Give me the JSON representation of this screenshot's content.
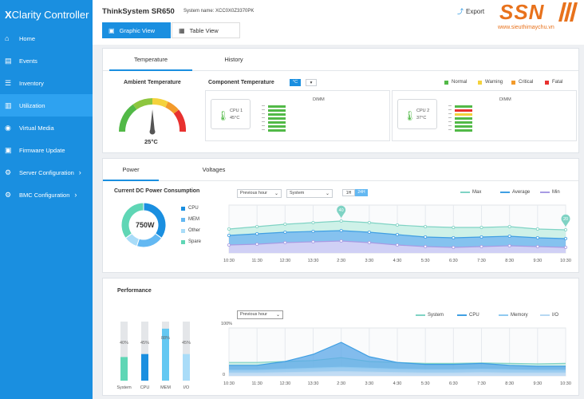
{
  "app": {
    "title_prefix": "X",
    "title_rest": "Clarity Controller"
  },
  "sidebar": {
    "items": [
      {
        "label": "Home",
        "icon": "home-icon"
      },
      {
        "label": "Events",
        "icon": "events-icon"
      },
      {
        "label": "Inventory",
        "icon": "inventory-icon"
      },
      {
        "label": "Utilization",
        "icon": "utilization-icon"
      },
      {
        "label": "Virtual Media",
        "icon": "virtual-media-icon"
      },
      {
        "label": "Firmware Update",
        "icon": "firmware-icon"
      },
      {
        "label": "Server Configuration",
        "icon": "server-config-icon"
      },
      {
        "label": "BMC Configuration",
        "icon": "bmc-config-icon"
      }
    ]
  },
  "header": {
    "system_title": "ThinkSystem SR650",
    "system_name": "System name: XCC0X0Z3370PK",
    "export_label": "Export",
    "graphic_view": "Graphic View",
    "table_view": "Table View"
  },
  "logo": {
    "mark": "SSN",
    "site": "www.sieuthimaychu.vn"
  },
  "temperature_panel": {
    "tabs": [
      "Temperature",
      "History"
    ],
    "ambient_label": "Ambient Temperature",
    "ambient_value": "25°C",
    "ambient_level": 0.45,
    "component_label": "Component Temperature",
    "unit_selected": "°C",
    "legend": [
      {
        "label": "Normal",
        "color": "#52b947"
      },
      {
        "label": "Warning",
        "color": "#f4d23c"
      },
      {
        "label": "Critical",
        "color": "#f39a2b"
      },
      {
        "label": "Fatal",
        "color": "#e8312f"
      }
    ],
    "cpus": [
      {
        "name": "CPU 1",
        "temp": "45°C",
        "dimm_label": "DIMM"
      },
      {
        "name": "CPU 2",
        "temp": "37°C",
        "dimm_label": "DIMM"
      }
    ]
  },
  "power_panel": {
    "tabs": [
      "Power",
      "Voltages"
    ],
    "title": "Current DC Power Consumption",
    "total": "750W",
    "donut": [
      {
        "label": "CPU",
        "value": 35,
        "color": "#1a8fe0"
      },
      {
        "label": "MEM",
        "value": 20,
        "color": "#63b8f2"
      },
      {
        "label": "Other",
        "value": 10,
        "color": "#a9dcf8"
      },
      {
        "label": "Spare",
        "value": 35,
        "color": "#5fd6b5"
      }
    ],
    "select_range": "Previous hour",
    "select_type": "System",
    "toggle_a": "1H",
    "toggle_b": "24H",
    "series": [
      {
        "label": "Max",
        "color": "#7fd3c4"
      },
      {
        "label": "Average",
        "color": "#3f9fe3"
      },
      {
        "label": "Min",
        "color": "#a89be3"
      }
    ],
    "x_labels": [
      "10:30",
      "11:30",
      "12:30",
      "13:30",
      "2:30",
      "3:30",
      "4:30",
      "5:30",
      "6:30",
      "7:30",
      "8:30",
      "9:30",
      "10:30"
    ],
    "marker_a": "40",
    "marker_b": "20"
  },
  "chart_data": [
    {
      "type": "area",
      "x": [
        "10:30",
        "11:30",
        "12:30",
        "13:30",
        "2:30",
        "3:30",
        "4:30",
        "5:30",
        "6:30",
        "7:30",
        "8:30",
        "9:30",
        "10:30"
      ],
      "series": [
        {
          "name": "Max",
          "values": [
            30,
            33,
            36,
            38,
            40,
            38,
            35,
            33,
            32,
            32,
            33,
            30,
            29
          ]
        },
        {
          "name": "Average",
          "values": [
            22,
            24,
            26,
            27,
            28,
            26,
            23,
            20,
            19,
            20,
            21,
            19,
            18
          ]
        },
        {
          "name": "Min",
          "values": [
            10,
            11,
            13,
            14,
            15,
            13,
            10,
            8,
            7,
            8,
            9,
            8,
            7
          ]
        }
      ],
      "ylim": [
        0,
        60
      ]
    },
    {
      "type": "bar",
      "categories": [
        "System",
        "CPU",
        "MEM",
        "I/O"
      ],
      "values": [
        40,
        45,
        88,
        45
      ],
      "ylim": [
        0,
        100
      ]
    },
    {
      "type": "area",
      "x": [
        "10:30",
        "11:30",
        "12:30",
        "13:30",
        "2:30",
        "3:30",
        "4:30",
        "5:30",
        "6:30",
        "7:30",
        "8:30",
        "9:30",
        "10:30"
      ],
      "series": [
        {
          "name": "System",
          "values": [
            28,
            28,
            30,
            32,
            38,
            30,
            28,
            26,
            26,
            27,
            26,
            25,
            26
          ]
        },
        {
          "name": "CPU",
          "values": [
            22,
            22,
            30,
            45,
            70,
            40,
            28,
            24,
            24,
            26,
            22,
            20,
            20
          ]
        },
        {
          "name": "Memory",
          "values": [
            12,
            12,
            14,
            16,
            18,
            16,
            14,
            13,
            13,
            14,
            13,
            12,
            12
          ]
        },
        {
          "name": "I/O",
          "values": [
            6,
            6,
            7,
            8,
            9,
            8,
            7,
            6,
            6,
            7,
            6,
            6,
            6
          ]
        }
      ],
      "ylim": [
        0,
        100
      ]
    }
  ],
  "performance_panel": {
    "title": "Performance",
    "bars": [
      {
        "label": "System",
        "pct": "40%",
        "value": 40,
        "color": "#5fd6b5"
      },
      {
        "label": "CPU",
        "pct": "45%",
        "value": 45,
        "color": "#1a8fe0"
      },
      {
        "label": "MEM",
        "pct": "88%",
        "value": 88,
        "color": "#63c8f2"
      },
      {
        "label": "I/O",
        "pct": "45%",
        "value": 45,
        "color": "#a9dcf8"
      }
    ],
    "select_range": "Previous hour",
    "y_top": "100%",
    "y_bottom": "0",
    "series": [
      {
        "label": "System",
        "color": "#7fd3c4"
      },
      {
        "label": "CPU",
        "color": "#3f9fe3"
      },
      {
        "label": "Memory",
        "color": "#8fc9f0"
      },
      {
        "label": "I/O",
        "color": "#b7d8f2"
      }
    ],
    "x_labels": [
      "10:30",
      "11:30",
      "12:30",
      "13:30",
      "2:30",
      "3:30",
      "4:30",
      "5:30",
      "6:30",
      "7:30",
      "8:30",
      "9:30",
      "10:30"
    ]
  }
}
